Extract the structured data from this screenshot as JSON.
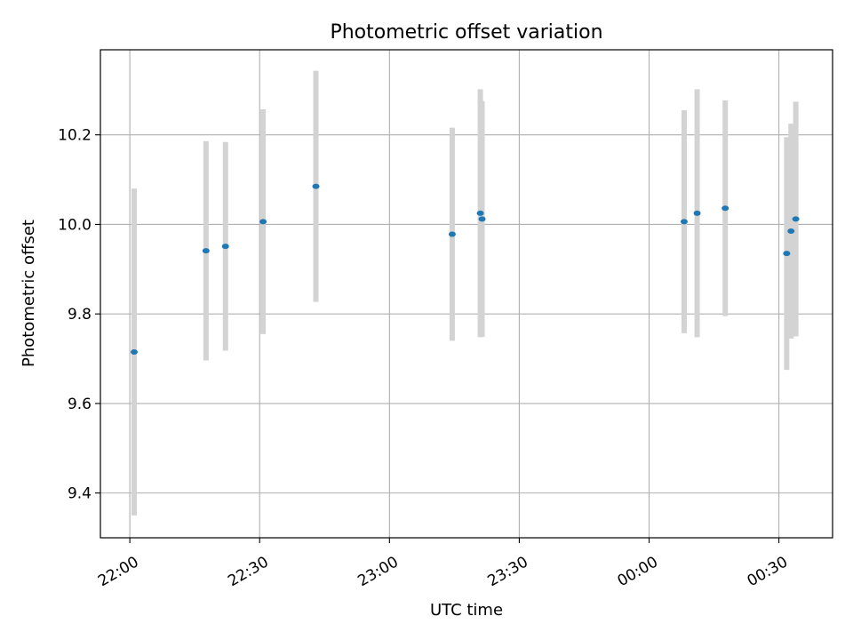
{
  "chart_data": {
    "type": "scatter",
    "title": "Photometric offset variation",
    "xlabel": "UTC time",
    "ylabel": "Photometric offset",
    "x_ticks": [
      "22:00",
      "22:30",
      "23:00",
      "23:30",
      "00:00",
      "00:30"
    ],
    "x_tick_minutes": [
      0,
      30,
      60,
      90,
      120,
      150
    ],
    "xlim_minutes": [
      -6.8,
      162.4
    ],
    "y_ticks": [
      "9.4",
      "9.6",
      "9.8",
      "10.0",
      "10.2"
    ],
    "y_tick_values": [
      9.4,
      9.6,
      9.8,
      10.0,
      10.2
    ],
    "ylim": [
      9.3,
      10.39
    ],
    "grid": true,
    "marker_color": "#1f77b4",
    "errorbar_color": "#d3d3d3",
    "points": [
      {
        "t_minutes": 1.0,
        "y": 9.715,
        "err": 0.365
      },
      {
        "t_minutes": 17.6,
        "y": 9.941,
        "err": 0.245
      },
      {
        "t_minutes": 22.1,
        "y": 9.951,
        "err": 0.233
      },
      {
        "t_minutes": 30.8,
        "y": 10.006,
        "err": 0.251
      },
      {
        "t_minutes": 43.0,
        "y": 10.085,
        "err": 0.258
      },
      {
        "t_minutes": 74.5,
        "y": 9.978,
        "err": 0.238
      },
      {
        "t_minutes": 81.0,
        "y": 10.025,
        "err": 0.277
      },
      {
        "t_minutes": 81.4,
        "y": 10.012,
        "err": 0.263
      },
      {
        "t_minutes": 128.1,
        "y": 10.006,
        "err": 0.249
      },
      {
        "t_minutes": 131.1,
        "y": 10.025,
        "err": 0.277
      },
      {
        "t_minutes": 137.6,
        "y": 10.036,
        "err": 0.241
      },
      {
        "t_minutes": 151.8,
        "y": 9.935,
        "err": 0.26
      },
      {
        "t_minutes": 152.8,
        "y": 9.985,
        "err": 0.24
      },
      {
        "t_minutes": 153.9,
        "y": 10.012,
        "err": 0.262
      }
    ]
  }
}
